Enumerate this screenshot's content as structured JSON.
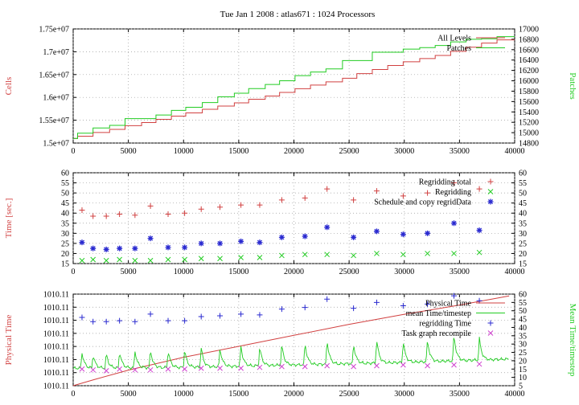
{
  "figure_title": "Tue Jan 1 2008 : atlas671 : 1024 Processors",
  "colors": {
    "red": "#d14040",
    "green": "#22cc22",
    "lightgreen": "#7ee87e",
    "blue": "#2a2ad0",
    "magenta": "#d040d0",
    "pink": "#ff8080",
    "grid": "#9a9a9a"
  },
  "chart_data": [
    {
      "type": "line",
      "title": "",
      "xlabel": "",
      "ylabel": "Cells",
      "y2label": "Patches",
      "xlim": [
        0,
        40000
      ],
      "ylim": [
        15000000,
        17500000
      ],
      "y2lim": [
        14800,
        17000
      ],
      "xticks": [
        "0",
        "5000",
        "10000",
        "15000",
        "20000",
        "25000",
        "30000",
        "35000",
        "40000"
      ],
      "yticks": [
        "1.5e+07",
        "1.55e+07",
        "1.6e+07",
        "1.65e+07",
        "1.7e+07",
        "1.75e+07"
      ],
      "y2ticks": [
        "14800",
        "15000",
        "15200",
        "15400",
        "15600",
        "15800",
        "16000",
        "16200",
        "16400",
        "16600",
        "16800",
        "17000"
      ],
      "legend": "top-right",
      "grid": true,
      "step": true,
      "x": [
        0,
        400,
        1800,
        3300,
        4700,
        6200,
        7500,
        8900,
        10200,
        11700,
        13100,
        14600,
        15900,
        17400,
        18700,
        20100,
        21500,
        22900,
        24400,
        25700,
        27100,
        28500,
        29900,
        31400,
        32800,
        34200,
        35600,
        37000,
        38400
      ],
      "series": [
        {
          "name": "All Levels",
          "axis": "left",
          "values": [
            15100000,
            15150000,
            15230000,
            15300000,
            15380000,
            15450000,
            15520000,
            15590000,
            15660000,
            15740000,
            15810000,
            15880000,
            15960000,
            16030000,
            16110000,
            16190000,
            16270000,
            16340000,
            16420000,
            16520000,
            16610000,
            16700000,
            16780000,
            16850000,
            16920000,
            17010000,
            17100000,
            17190000,
            17260000
          ]
        },
        {
          "name": "Patches",
          "axis": "right",
          "values": [
            14890,
            14990,
            15090,
            15140,
            15270,
            15270,
            15340,
            15430,
            15490,
            15580,
            15690,
            15760,
            15850,
            15930,
            16000,
            16100,
            16170,
            16230,
            16390,
            16390,
            16550,
            16550,
            16610,
            16640,
            16680,
            16750,
            16800,
            16810,
            16850
          ]
        }
      ]
    },
    {
      "type": "scatter",
      "title": "",
      "xlabel": "",
      "ylabel": "Time [sec.]",
      "xlim": [
        0,
        40000
      ],
      "ylim": [
        15,
        60
      ],
      "y2lim": [
        15,
        60
      ],
      "xticks": [
        "0",
        "5000",
        "10000",
        "15000",
        "20000",
        "25000",
        "30000",
        "35000",
        "40000"
      ],
      "yticks": [
        "15",
        "20",
        "25",
        "30",
        "35",
        "40",
        "45",
        "50",
        "55",
        "60"
      ],
      "y2ticks": [
        "15",
        "20",
        "25",
        "30",
        "35",
        "40",
        "45",
        "50",
        "55",
        "60"
      ],
      "legend": "top-right",
      "grid": true,
      "x": [
        800,
        1800,
        3000,
        4200,
        5600,
        7000,
        8600,
        10100,
        11600,
        13300,
        15200,
        16900,
        18900,
        21000,
        23000,
        25400,
        27500,
        29900,
        32100,
        34500,
        36800
      ],
      "series": [
        {
          "name": "Regridding total",
          "marker": "plus",
          "values": [
            41.5,
            38.5,
            38.5,
            39.5,
            39,
            43.5,
            39.5,
            40,
            42,
            43,
            44,
            44,
            46.5,
            47.5,
            52,
            46.5,
            51,
            48.5,
            50,
            55,
            52
          ]
        },
        {
          "name": "Regridding",
          "marker": "x",
          "values": [
            16.5,
            17,
            16.5,
            17,
            16.5,
            16.5,
            17,
            17,
            17.5,
            17.5,
            18,
            18,
            19,
            19.5,
            19.5,
            19,
            20,
            19.5,
            20,
            20,
            20.5
          ]
        },
        {
          "name": "Schedule and copy regridData",
          "marker": "star",
          "values": [
            25.5,
            22.5,
            22,
            22.5,
            22.5,
            27.5,
            23,
            23,
            25,
            25,
            26,
            25.5,
            28,
            28.5,
            33,
            28,
            31,
            29.5,
            30,
            35,
            31.5
          ]
        }
      ]
    },
    {
      "type": "line",
      "title": "",
      "xlabel": "",
      "ylabel": "Physical Time",
      "y2label": "Mean Time/timestep",
      "xlim": [
        0,
        40000
      ],
      "y2lim": [
        5,
        60
      ],
      "xticks": [
        "0",
        "5000",
        "10000",
        "15000",
        "20000",
        "25000",
        "30000",
        "35000",
        "40000"
      ],
      "yticks": [
        "1010.11",
        "1010.11",
        "1010.11",
        "1010.11",
        "1010.11",
        "1010.11",
        "1010.11",
        "1010.11"
      ],
      "y2ticks": [
        "5",
        "10",
        "15",
        "20",
        "25",
        "30",
        "35",
        "40",
        "45",
        "50",
        "55",
        "60"
      ],
      "legend": "top-right",
      "grid": true,
      "series": [
        {
          "name": "Physical Time",
          "axis": "left",
          "x": [
            0,
            2000,
            5000,
            10000,
            15000,
            20000,
            25000,
            30000,
            35000,
            39500
          ],
          "values_fraction_of_axis": [
            0,
            0.07,
            0.17,
            0.31,
            0.43,
            0.55,
            0.67,
            0.78,
            0.88,
            0.98
          ]
        },
        {
          "name": "mean Time/timestep",
          "axis": "right",
          "baseline": [
            [
              0,
              15.5
            ],
            [
              10000,
              16
            ],
            [
              20000,
              17.5
            ],
            [
              30000,
              19
            ],
            [
              39500,
              21
            ]
          ],
          "spikes_x": [
            800,
            1800,
            3000,
            4200,
            5600,
            7000,
            8600,
            10100,
            11600,
            13300,
            15200,
            16900,
            18900,
            21000,
            23000,
            25400,
            27500,
            29900,
            32100,
            34500,
            36800
          ],
          "spikes_peak": [
            25,
            24,
            24.5,
            26,
            26,
            27,
            26.5,
            27,
            28,
            28,
            29,
            28.5,
            30,
            31,
            33,
            30.5,
            33,
            32,
            33,
            36,
            33.5
          ]
        },
        {
          "name": "regridding Time",
          "axis": "right",
          "marker": "plus",
          "x": [
            800,
            1800,
            3000,
            4200,
            5600,
            7000,
            8600,
            10100,
            11600,
            13300,
            15200,
            16900,
            18900,
            21000,
            23000,
            25400,
            27500,
            29900,
            32100,
            34500,
            36800
          ],
          "values": [
            46,
            43.5,
            43.5,
            44,
            43.5,
            48,
            44,
            44,
            46.5,
            47,
            48,
            47.5,
            51,
            52,
            57,
            51.5,
            55,
            53,
            54,
            59,
            56
          ]
        },
        {
          "name": "Task graph recompile",
          "axis": "right",
          "marker": "x",
          "x": [
            800,
            1800,
            3000,
            4200,
            5600,
            7000,
            8600,
            10100,
            11600,
            13300,
            15200,
            16900,
            18900,
            21000,
            23000,
            25400,
            27500,
            29900,
            32100,
            34500,
            36800
          ],
          "values": [
            15,
            14.5,
            14,
            15,
            14.5,
            14.5,
            15,
            15,
            15.5,
            15.5,
            15.5,
            16,
            16.5,
            16.5,
            17,
            16.5,
            17,
            17.5,
            17,
            17.5,
            18
          ]
        }
      ]
    }
  ]
}
